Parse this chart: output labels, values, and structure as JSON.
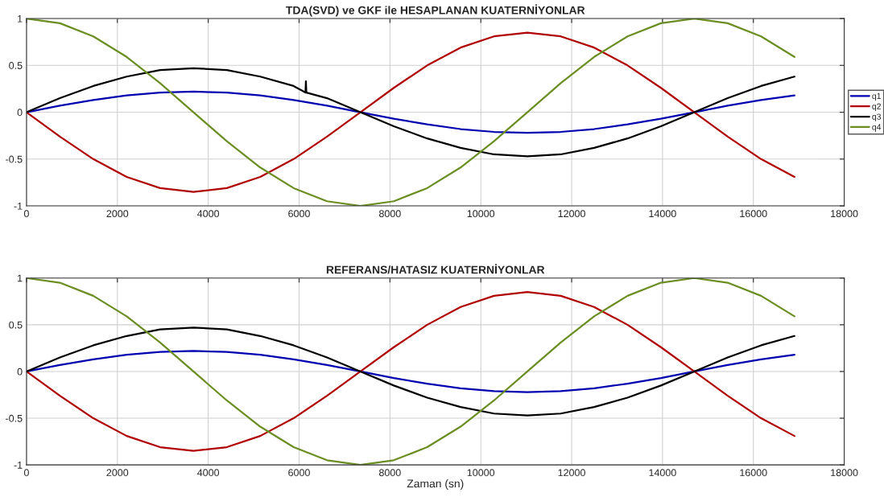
{
  "chart_data": [
    {
      "type": "line",
      "title": "TDA(SVD) ve GKF ile HESAPLANAN KUATERNİYONLAR",
      "x": [
        0,
        735,
        1470,
        2205,
        2940,
        3675,
        4410,
        5145,
        5880,
        6615,
        7350,
        8085,
        8820,
        9555,
        10290,
        11025,
        11760,
        12495,
        13230,
        13965,
        14700,
        15435,
        16170,
        16905
      ],
      "series": [
        {
          "name": "q1",
          "color": "#0000b0",
          "values": [
            0,
            0.07,
            0.13,
            0.18,
            0.21,
            0.22,
            0.21,
            0.18,
            0.13,
            0.07,
            0,
            -0.07,
            -0.13,
            -0.18,
            -0.21,
            -0.22,
            -0.21,
            -0.18,
            -0.13,
            -0.07,
            0,
            0.07,
            0.13,
            0.18
          ]
        },
        {
          "name": "q2",
          "color": "#b00000",
          "values": [
            0,
            -0.26,
            -0.5,
            -0.69,
            -0.81,
            -0.85,
            -0.81,
            -0.69,
            -0.5,
            -0.26,
            0,
            0.26,
            0.5,
            0.69,
            0.81,
            0.85,
            0.81,
            0.69,
            0.5,
            0.26,
            0,
            -0.26,
            -0.5,
            -0.69
          ]
        },
        {
          "name": "q3",
          "color": "#000000",
          "x": [
            0,
            735,
            1470,
            2205,
            2940,
            3675,
            4410,
            5145,
            5880,
            6140,
            6150,
            6160,
            6615,
            7350,
            8085,
            8820,
            9555,
            10290,
            11025,
            11760,
            12495,
            13230,
            13965,
            14700,
            15435,
            16170,
            16905
          ],
          "values": [
            0,
            0.15,
            0.28,
            0.38,
            0.45,
            0.47,
            0.45,
            0.38,
            0.28,
            0.21,
            0.33,
            0.21,
            0.15,
            0,
            -0.15,
            -0.28,
            -0.38,
            -0.45,
            -0.47,
            -0.45,
            -0.38,
            -0.28,
            -0.15,
            0,
            0.15,
            0.28,
            0.38
          ]
        },
        {
          "name": "q4",
          "color": "#6b8e23",
          "values": [
            1,
            0.95,
            0.81,
            0.59,
            0.31,
            0,
            -0.31,
            -0.59,
            -0.81,
            -0.95,
            -1,
            -0.95,
            -0.81,
            -0.59,
            -0.31,
            0,
            0.31,
            0.59,
            0.81,
            0.95,
            1,
            0.95,
            0.81,
            0.59
          ]
        }
      ],
      "xlim": [
        0,
        18000
      ],
      "xticks": [
        0,
        2000,
        4000,
        6000,
        8000,
        10000,
        12000,
        14000,
        16000,
        18000
      ],
      "ylim": [
        -1,
        1
      ],
      "yticks": [
        -1,
        -0.5,
        0,
        0.5,
        1
      ],
      "grid": true,
      "legend": "right"
    },
    {
      "type": "line",
      "title": "REFERANS/HATASIZ KUATERNİYONLAR",
      "xlabel": "Zaman (sn)",
      "x": [
        0,
        735,
        1470,
        2205,
        2940,
        3675,
        4410,
        5145,
        5880,
        6615,
        7350,
        8085,
        8820,
        9555,
        10290,
        11025,
        11760,
        12495,
        13230,
        13965,
        14700,
        15435,
        16170,
        16905
      ],
      "series": [
        {
          "color": "#0000b0",
          "values": [
            0,
            0.07,
            0.13,
            0.18,
            0.21,
            0.22,
            0.21,
            0.18,
            0.13,
            0.07,
            0,
            -0.07,
            -0.13,
            -0.18,
            -0.21,
            -0.22,
            -0.21,
            -0.18,
            -0.13,
            -0.07,
            0,
            0.07,
            0.13,
            0.18
          ]
        },
        {
          "color": "#b00000",
          "values": [
            0,
            -0.26,
            -0.5,
            -0.69,
            -0.81,
            -0.85,
            -0.81,
            -0.69,
            -0.5,
            -0.26,
            0,
            0.26,
            0.5,
            0.69,
            0.81,
            0.85,
            0.81,
            0.69,
            0.5,
            0.26,
            0,
            -0.26,
            -0.5,
            -0.69
          ]
        },
        {
          "color": "#000000",
          "values": [
            0,
            0.15,
            0.28,
            0.38,
            0.45,
            0.47,
            0.45,
            0.38,
            0.28,
            0.15,
            0,
            -0.15,
            -0.28,
            -0.38,
            -0.45,
            -0.47,
            -0.45,
            -0.38,
            -0.28,
            -0.15,
            0,
            0.15,
            0.28,
            0.38
          ]
        },
        {
          "color": "#6b8e23",
          "values": [
            1,
            0.95,
            0.81,
            0.59,
            0.31,
            0,
            -0.31,
            -0.59,
            -0.81,
            -0.95,
            -1,
            -0.95,
            -0.81,
            -0.59,
            -0.31,
            0,
            0.31,
            0.59,
            0.81,
            0.95,
            1,
            0.95,
            0.81,
            0.59
          ]
        }
      ],
      "xlim": [
        0,
        18000
      ],
      "xticks": [
        0,
        2000,
        4000,
        6000,
        8000,
        10000,
        12000,
        14000,
        16000,
        18000
      ],
      "ylim": [
        -1,
        1
      ],
      "yticks": [
        -1,
        -0.5,
        0,
        0.5,
        1
      ],
      "grid": true
    }
  ]
}
